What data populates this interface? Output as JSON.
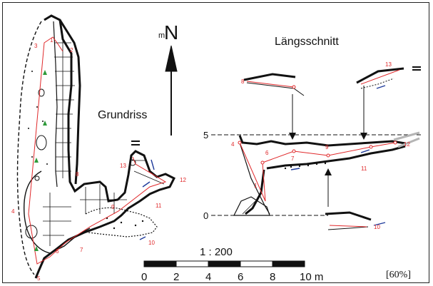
{
  "titles": {
    "plan": "Grundriss",
    "section": "Längsschnitt"
  },
  "north": {
    "prefix": "m",
    "letter": "N"
  },
  "scale": {
    "ratio": "1 : 200",
    "ticks": [
      "0",
      "2",
      "4",
      "6",
      "8",
      "10 m"
    ]
  },
  "section_depths": [
    "5",
    "0"
  ],
  "zoom": "[60%]",
  "plan_stations": [
    "1",
    "2",
    "3",
    "4",
    "5",
    "6",
    "7",
    "8",
    "9",
    "10",
    "11",
    "12",
    "13"
  ],
  "section_stations": [
    "1",
    "4",
    "6",
    "7",
    "8",
    "9",
    "10",
    "11",
    "12",
    "13"
  ],
  "colors": {
    "outline": "#111111",
    "survey_line": "#e0282a",
    "water_arrow": "#1e3a9a",
    "plants": "#2e9a3a",
    "entrance_grey": "#b5b5b5"
  }
}
